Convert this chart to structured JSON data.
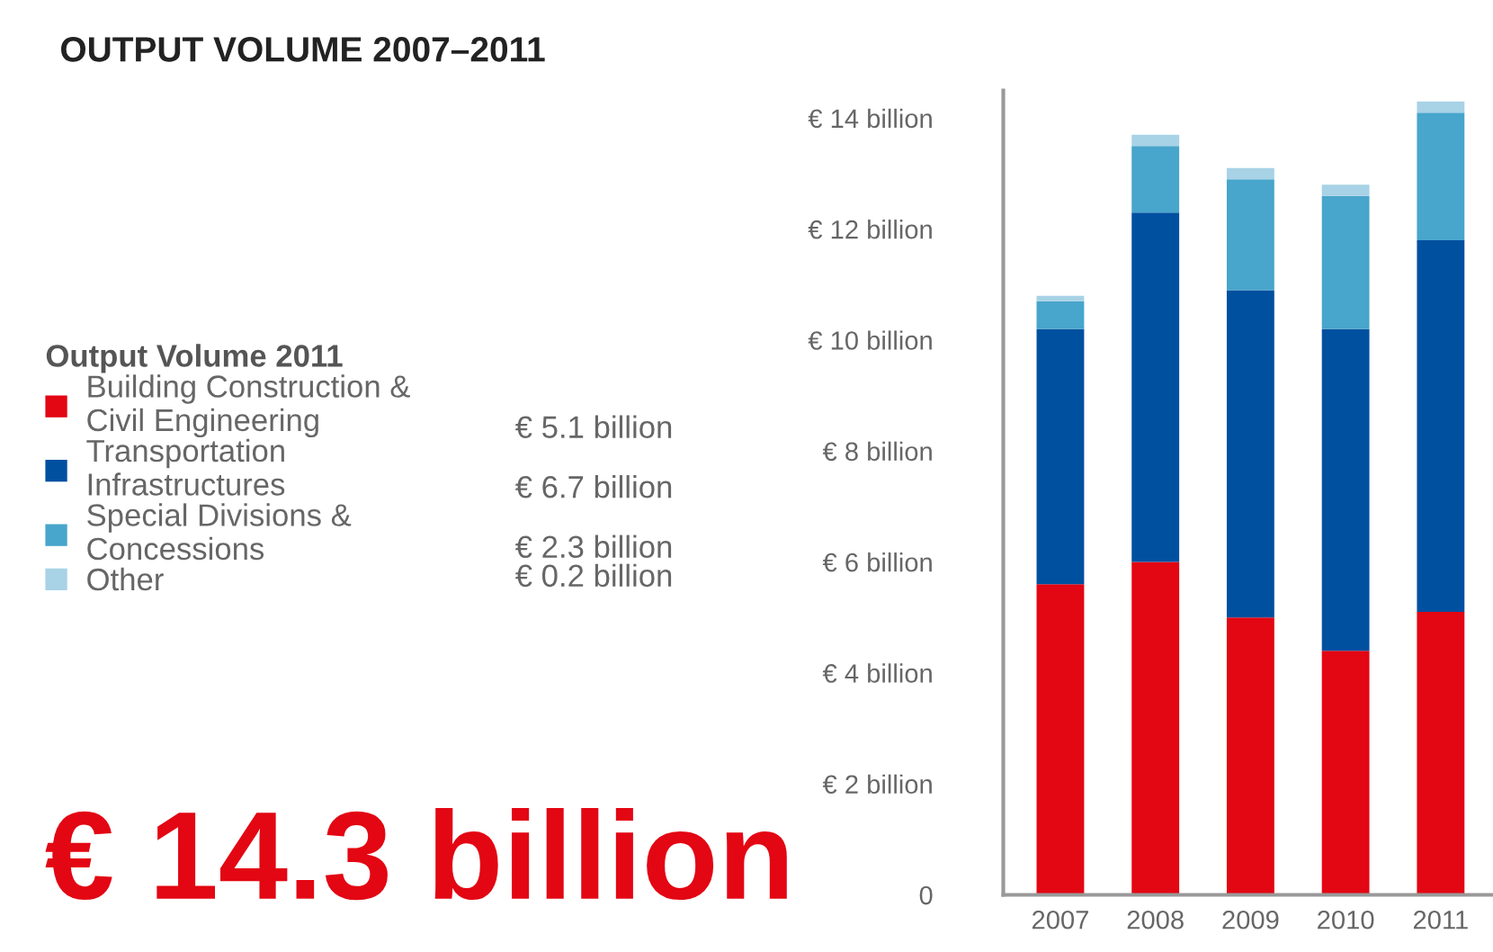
{
  "chart_data": {
    "type": "bar",
    "title": "OUTPUT VOLUME 2007–2011",
    "legend_title": "Output Volume 2011",
    "categories": [
      "2007",
      "2008",
      "2009",
      "2010",
      "2011"
    ],
    "stacked": true,
    "series": [
      {
        "name": "Building Construction &\nCivil Engineering",
        "color": "#e30613",
        "values": [
          5.6,
          6.0,
          5.0,
          4.4,
          5.1
        ]
      },
      {
        "name": "Transportation\nInfrastructures",
        "color": "#0050a0",
        "values": [
          4.6,
          6.3,
          5.9,
          5.8,
          6.7
        ]
      },
      {
        "name": "Special Divisions &\nConcessions",
        "color": "#48a5cb",
        "values": [
          0.5,
          1.2,
          2.0,
          2.4,
          2.3
        ]
      },
      {
        "name": "Other",
        "color": "#a8d2e6",
        "values": [
          0.1,
          0.2,
          0.2,
          0.2,
          0.2
        ]
      }
    ],
    "ylim": [
      0,
      14.5
    ],
    "yticks": [
      0,
      {
        "value": 2,
        "label": "€ 2 billion"
      },
      {
        "value": 4,
        "label": "€ 4 billion"
      },
      {
        "value": 6,
        "label": "€ 6 billion"
      },
      {
        "value": 8,
        "label": "€ 8 billion"
      },
      {
        "value": 10,
        "label": "€ 10 billion"
      },
      {
        "value": 12,
        "label": "€ 12 billion"
      },
      {
        "value": 14,
        "label": "€ 14 billion"
      }
    ],
    "grid": false,
    "legend": "left",
    "annotations": [
      "€ 5.1 billion",
      "€ 6.7 billion",
      "€ 2.3 billion",
      "€ 0.2 billion",
      "€ 14.3 billion"
    ]
  }
}
